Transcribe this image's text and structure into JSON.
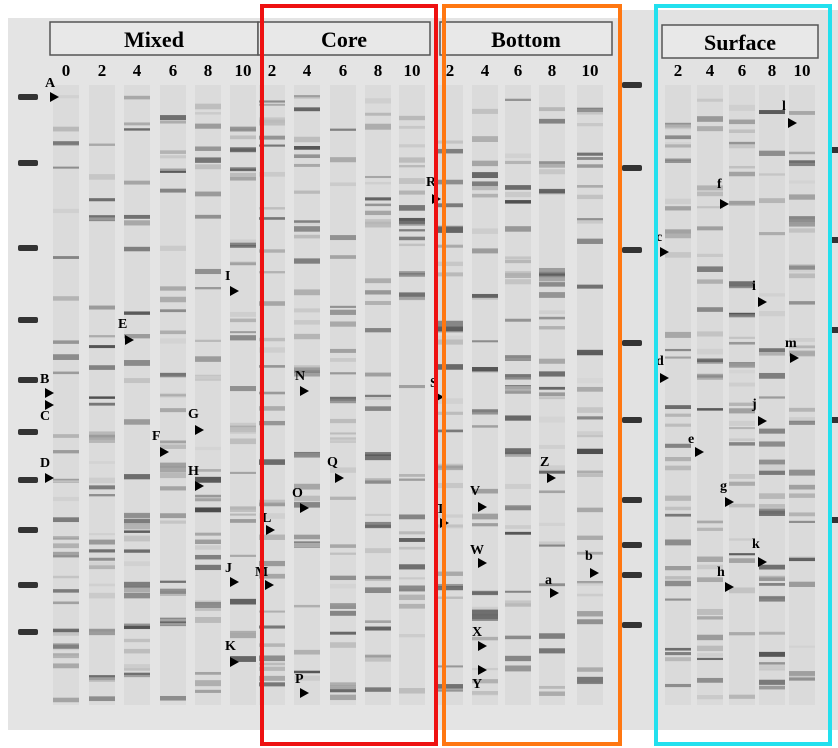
{
  "panels": [
    {
      "title": "Mixed",
      "lanes": [
        "0",
        "2",
        "4",
        "6",
        "8",
        "10"
      ]
    },
    {
      "title": "Core",
      "lanes": [
        "2",
        "4",
        "6",
        "8",
        "10"
      ]
    },
    {
      "title": "Bottom",
      "lanes": [
        "2",
        "4",
        "6",
        "8",
        "10"
      ]
    },
    {
      "title": "Surface",
      "lanes": [
        "2",
        "4",
        "6",
        "8",
        "10"
      ]
    }
  ],
  "band_labels": [
    "A",
    "B",
    "C",
    "D",
    "E",
    "F",
    "G",
    "H",
    "I",
    "J",
    "K",
    "L",
    "M",
    "N",
    "O",
    "P",
    "Q",
    "R",
    "S",
    "T",
    "V",
    "W",
    "X",
    "Y",
    "Z",
    "a",
    "b",
    "c",
    "d",
    "e",
    "f",
    "g",
    "h",
    "i",
    "j",
    "k",
    "l",
    "m"
  ]
}
